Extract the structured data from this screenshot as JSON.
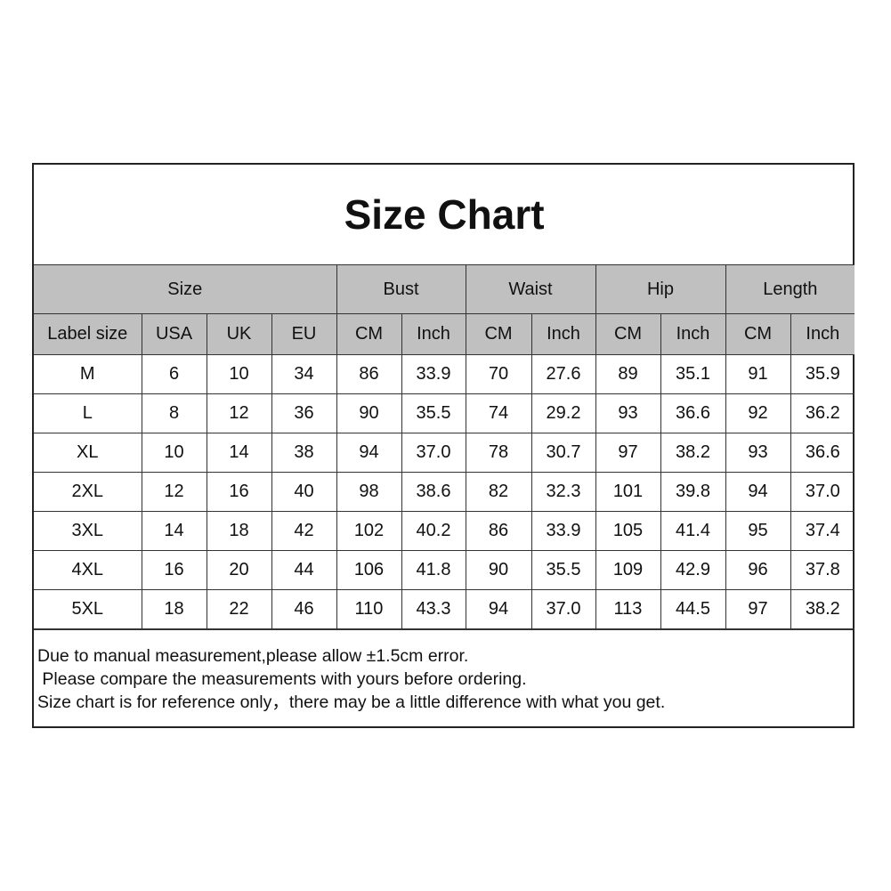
{
  "title": "Size Chart",
  "groups": [
    "Size",
    "Bust",
    "Waist",
    "Hip",
    "Length"
  ],
  "subheaders": [
    "Label size",
    "USA",
    "UK",
    "EU",
    "CM",
    "Inch",
    "CM",
    "Inch",
    "CM",
    "Inch",
    "CM",
    "Inch"
  ],
  "rows": [
    [
      "M",
      "6",
      "10",
      "34",
      "86",
      "33.9",
      "70",
      "27.6",
      "89",
      "35.1",
      "91",
      "35.9"
    ],
    [
      "L",
      "8",
      "12",
      "36",
      "90",
      "35.5",
      "74",
      "29.2",
      "93",
      "36.6",
      "92",
      "36.2"
    ],
    [
      "XL",
      "10",
      "14",
      "38",
      "94",
      "37.0",
      "78",
      "30.7",
      "97",
      "38.2",
      "93",
      "36.6"
    ],
    [
      "2XL",
      "12",
      "16",
      "40",
      "98",
      "38.6",
      "82",
      "32.3",
      "101",
      "39.8",
      "94",
      "37.0"
    ],
    [
      "3XL",
      "14",
      "18",
      "42",
      "102",
      "40.2",
      "86",
      "33.9",
      "105",
      "41.4",
      "95",
      "37.4"
    ],
    [
      "4XL",
      "16",
      "20",
      "44",
      "106",
      "41.8",
      "90",
      "35.5",
      "109",
      "42.9",
      "96",
      "37.8"
    ],
    [
      "5XL",
      "18",
      "22",
      "46",
      "110",
      "43.3",
      "94",
      "37.0",
      "113",
      "44.5",
      "97",
      "38.2"
    ]
  ],
  "notes": [
    "Due to manual measurement,please allow ±1.5cm error.",
    " Please compare the measurements with yours before ordering.",
    "Size chart is for reference only，there may be a little difference with what you get."
  ],
  "colors": {
    "header_bg": "#c0c0c0",
    "border": "#333333"
  }
}
